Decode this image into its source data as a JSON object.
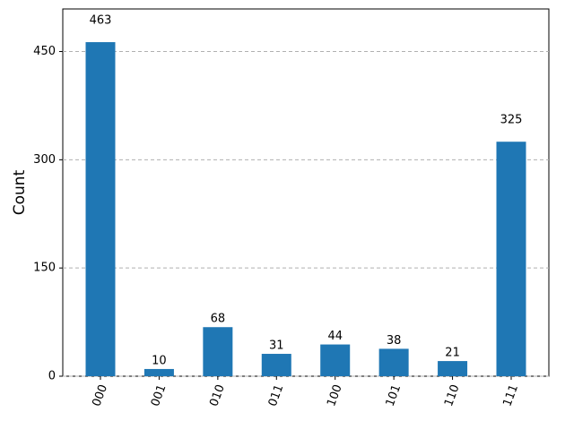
{
  "chart_data": {
    "type": "bar",
    "y_label": "Count",
    "categories": [
      "000",
      "001",
      "010",
      "011",
      "100",
      "101",
      "110",
      "111"
    ],
    "values": [
      463,
      10,
      68,
      31,
      44,
      38,
      21,
      325
    ],
    "color": "#1f77b4",
    "ylim": [
      0,
      509
    ],
    "yticks": [
      0,
      150,
      300,
      450
    ],
    "grid": true
  }
}
